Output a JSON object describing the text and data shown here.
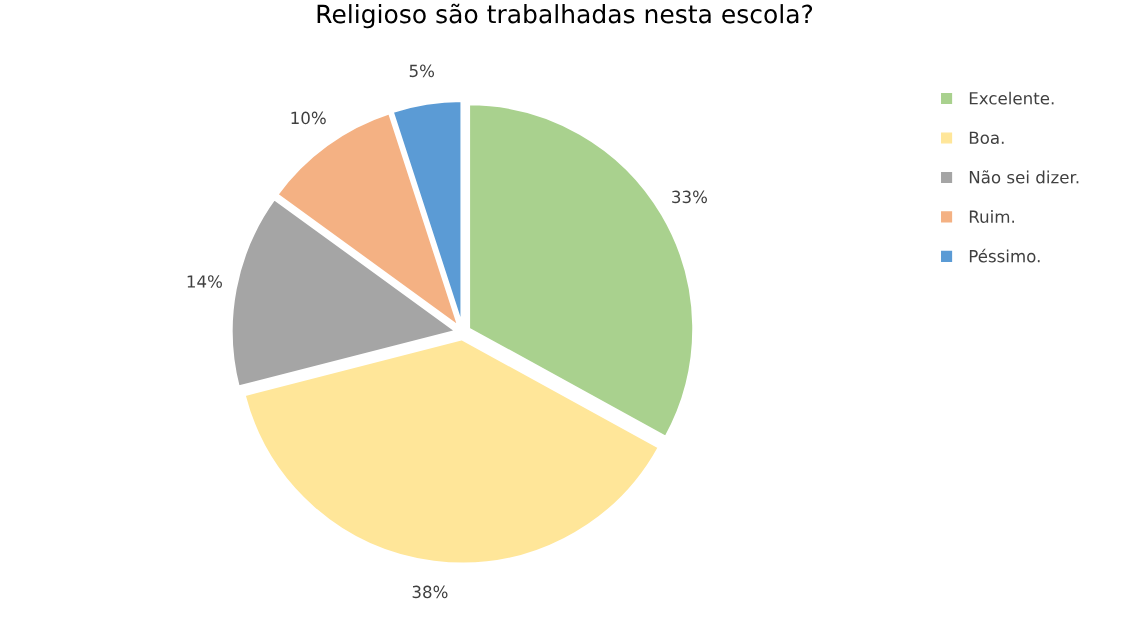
{
  "chart_data": {
    "type": "pie",
    "title": "Religioso são trabalhadas nesta escola?",
    "categories": [
      "Excelente.",
      "Boa.",
      "Não sei dizer.",
      "Ruim.",
      "Péssimo."
    ],
    "values": [
      33,
      38,
      14,
      10,
      5
    ],
    "colors": [
      "#a9d18e",
      "#ffe699",
      "#a5a5a5",
      "#f4b183",
      "#5b9bd5"
    ],
    "value_labels": [
      "33%",
      "38%",
      "14%",
      "10%",
      "5%"
    ],
    "legend": "right"
  }
}
